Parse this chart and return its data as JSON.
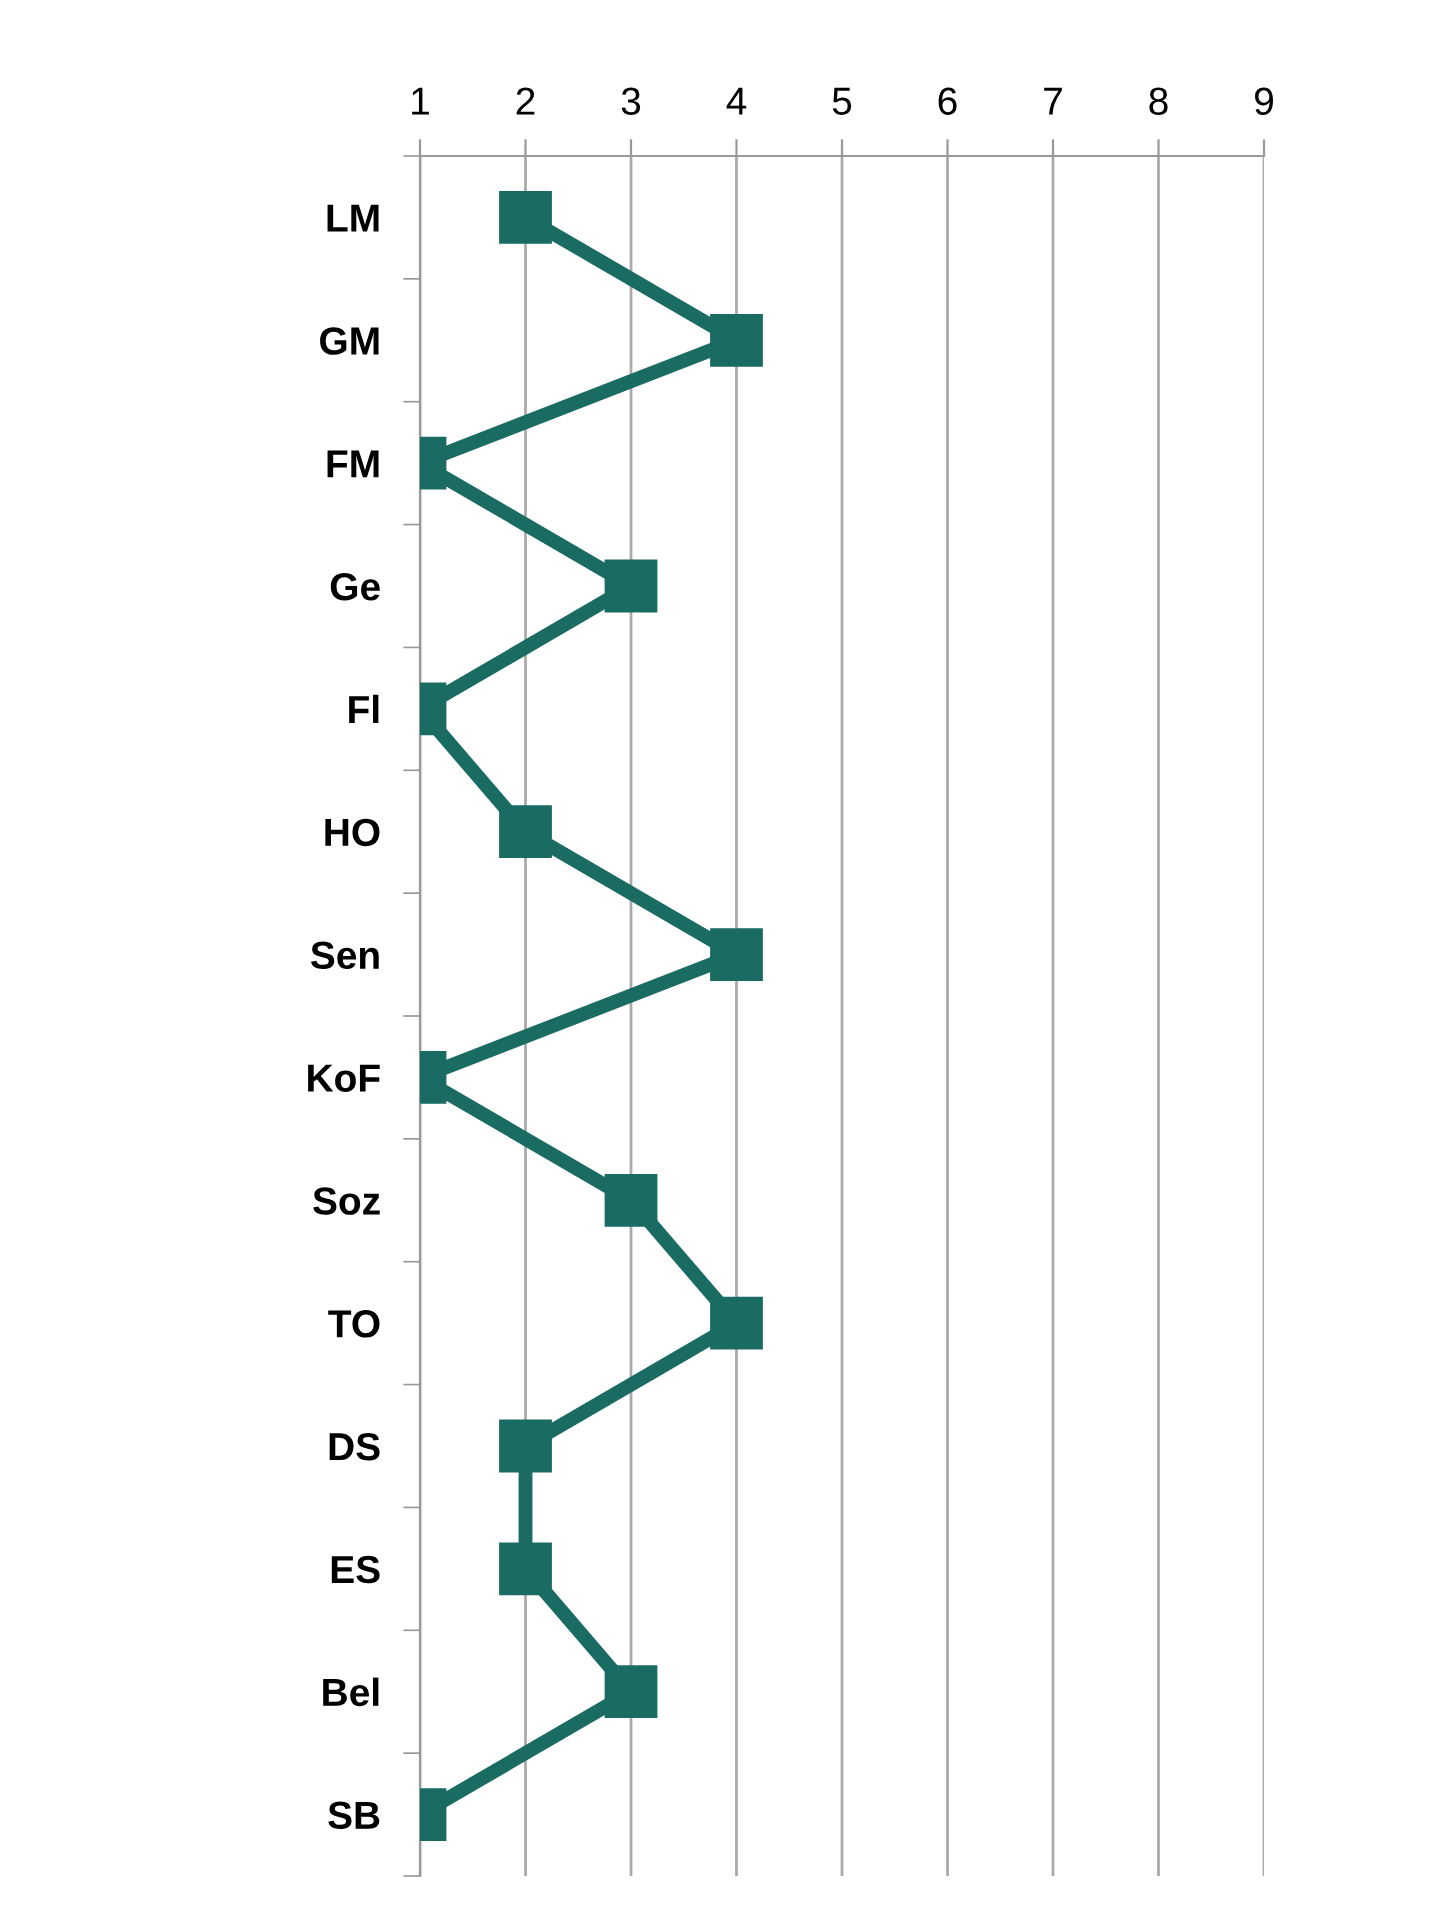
{
  "chart_data": {
    "type": "line",
    "orientation": "horizontal",
    "categories": [
      "LM",
      "GM",
      "FM",
      "Ge",
      "Fl",
      "HO",
      "Sen",
      "KoF",
      "Soz",
      "TO",
      "DS",
      "ES",
      "Bel",
      "SB"
    ],
    "values": [
      2,
      4,
      1,
      3,
      1,
      2,
      4,
      1,
      3,
      4,
      2,
      2,
      3,
      1
    ],
    "color": "#1a6b62",
    "xlim": [
      1,
      9
    ],
    "xticks": [
      1,
      2,
      3,
      4,
      5,
      6,
      7,
      8,
      9
    ],
    "grid": "x",
    "marker": "square",
    "line_style": "solid"
  }
}
